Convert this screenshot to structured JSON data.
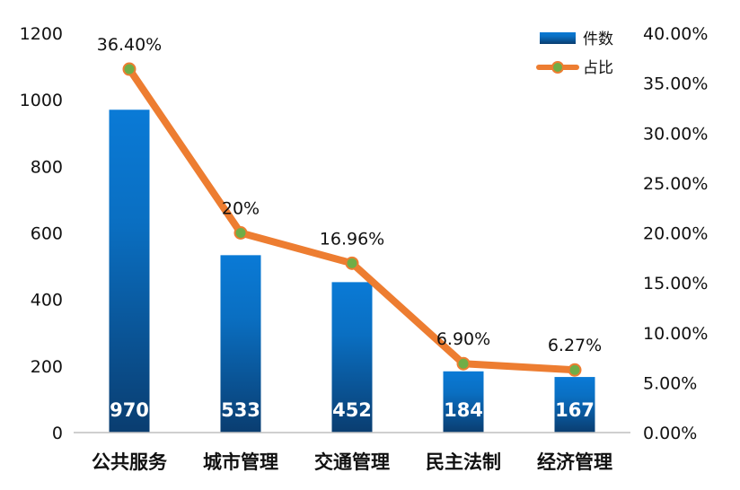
{
  "chart_data": {
    "type": "bar",
    "categories": [
      "公共服务",
      "城市管理",
      "交通管理",
      "民主法制",
      "经济管理"
    ],
    "series": [
      {
        "name": "件数",
        "type": "bar",
        "axis": "left",
        "values": [
          970,
          533,
          452,
          184,
          167
        ],
        "labels": [
          "970",
          "533",
          "452",
          "184",
          "167"
        ],
        "color_top": "#0a7ad6",
        "color_bottom": "#0a3d70"
      },
      {
        "name": "占比",
        "type": "line",
        "axis": "right",
        "values": [
          36.4,
          20.0,
          16.96,
          6.9,
          6.27
        ],
        "labels": [
          "36.40%",
          "20%",
          "16.96%",
          "6.90%",
          "6.27%"
        ],
        "line_color": "#ed7d31",
        "marker_color": "#70ad47"
      }
    ],
    "y_left": {
      "range": [
        0,
        1200
      ],
      "ticks": [
        "0",
        "200",
        "400",
        "600",
        "800",
        "1000",
        "1200"
      ]
    },
    "y_right": {
      "range": [
        0,
        40
      ],
      "ticks": [
        "0.00%",
        "5.00%",
        "10.00%",
        "15.00%",
        "20.00%",
        "25.00%",
        "30.00%",
        "35.00%",
        "40.00%"
      ]
    },
    "grid": false,
    "legend_position": "top-right"
  }
}
